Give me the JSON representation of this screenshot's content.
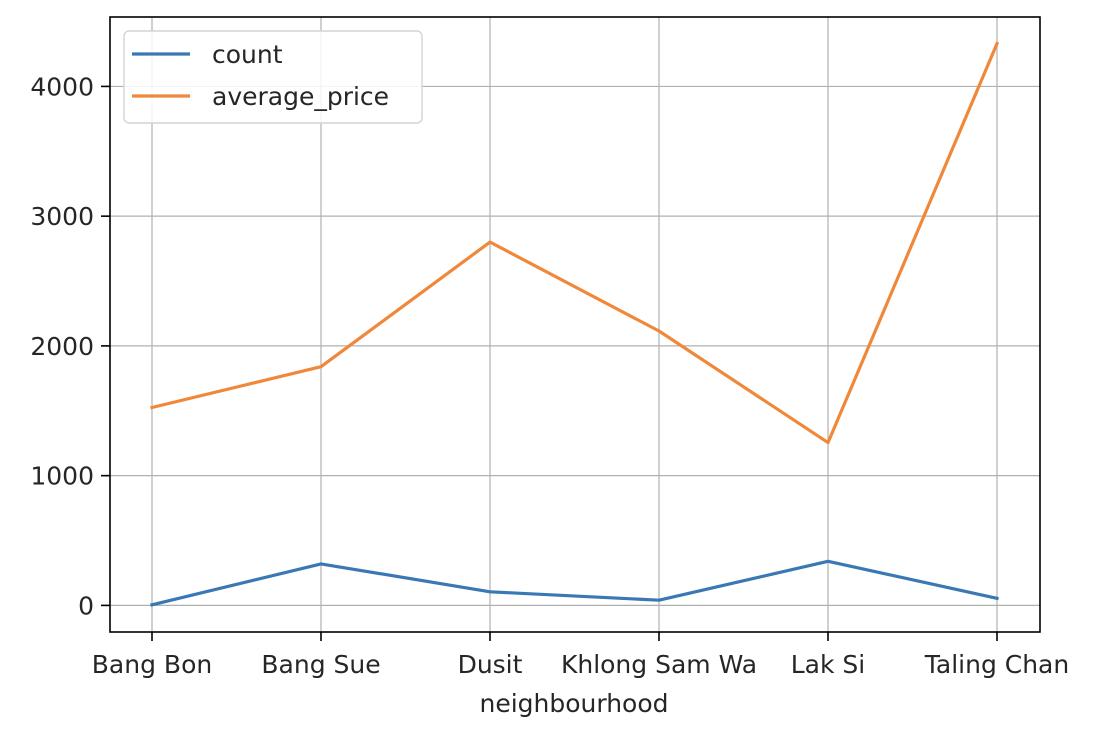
{
  "chart_data": {
    "type": "line",
    "xlabel": "neighbourhood",
    "ylabel": "",
    "categories": [
      "Bang Bon",
      "Bang Sue",
      "Dusit",
      "Khlong Sam Wa",
      "Lak Si",
      "Taling Chan"
    ],
    "series": [
      {
        "name": "count",
        "color": "#3a78b5",
        "values": [
          5,
          320,
          105,
          40,
          340,
          55
        ]
      },
      {
        "name": "average_price",
        "color": "#f0883a",
        "values": [
          1525,
          1840,
          2800,
          2115,
          1255,
          4330
        ]
      }
    ],
    "ylim": [
      -205,
      4535
    ],
    "yticks": [
      0,
      1000,
      2000,
      3000,
      4000
    ],
    "ytick_labels": [
      "0",
      "1000",
      "2000",
      "3000",
      "4000"
    ],
    "grid": true,
    "legend": "top-left"
  }
}
